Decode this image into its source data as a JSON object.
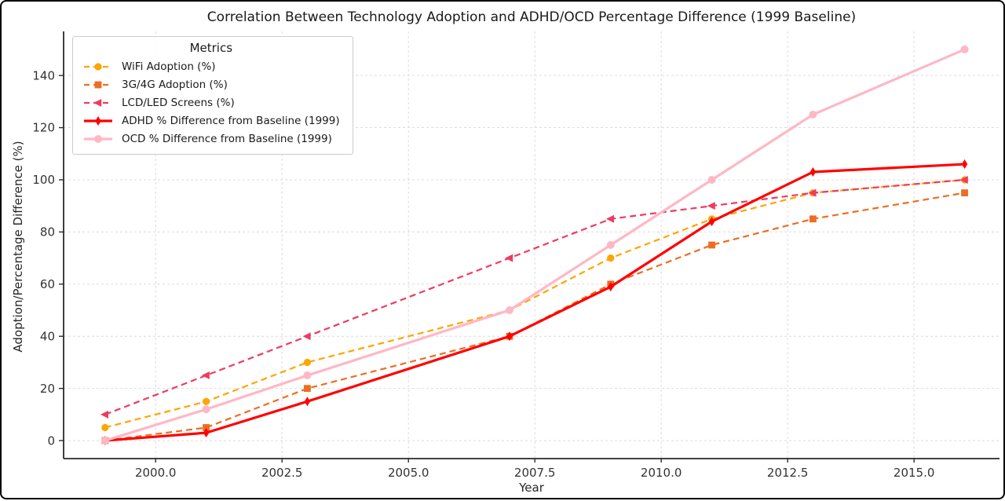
{
  "chart_data": {
    "type": "line",
    "title": "Correlation Between Technology Adoption and ADHD/OCD Percentage Difference (1999 Baseline)",
    "xlabel": "Year",
    "ylabel": "Adoption/Percentage Difference (%)",
    "legend_title": "Metrics",
    "legend_position": "upper-left",
    "grid": true,
    "x": [
      1999,
      2001,
      2003,
      2007,
      2009,
      2011,
      2013,
      2016
    ],
    "series": [
      {
        "name": "WiFi Adoption (%)",
        "values": [
          5,
          15,
          30,
          50,
          70,
          85,
          95,
          100
        ],
        "color": "#FFA500",
        "line_style": "dashed",
        "marker": "circle"
      },
      {
        "name": "3G/4G Adoption (%)",
        "values": [
          0,
          5,
          20,
          40,
          60,
          75,
          85,
          95
        ],
        "color": "#ED6D23",
        "line_style": "dashed",
        "marker": "square"
      },
      {
        "name": "LCD/LED Screens (%)",
        "values": [
          10,
          25,
          40,
          70,
          85,
          90,
          95,
          100
        ],
        "color": "#EE3B60",
        "line_style": "dashed",
        "marker": "triangle-left"
      },
      {
        "name": "ADHD % Difference from Baseline (1999)",
        "values": [
          0,
          3,
          15,
          40,
          59,
          84,
          103,
          106
        ],
        "color": "#FF0000",
        "line_style": "solid",
        "marker": "diamond-thin"
      },
      {
        "name": "OCD % Difference from Baseline (1999)",
        "values": [
          0,
          12,
          25,
          50,
          75,
          100,
          125,
          150
        ],
        "color": "#FFB7C5",
        "line_style": "solid",
        "marker": "circle"
      }
    ],
    "x_ticks": [
      2000.0,
      2002.5,
      2005.0,
      2007.5,
      2010.0,
      2012.5,
      2015.0
    ],
    "x_tick_labels": [
      "2000.0",
      "2002.5",
      "2005.0",
      "2007.5",
      "2010.0",
      "2012.5",
      "2015.0"
    ],
    "y_ticks": [
      0,
      20,
      40,
      60,
      80,
      100,
      120,
      140
    ],
    "y_tick_labels": [
      "0",
      "20",
      "40",
      "60",
      "80",
      "100",
      "120",
      "140"
    ],
    "xlim": [
      1998.18,
      2016.69
    ],
    "ylim": [
      -6.9,
      156.9
    ],
    "colors": {
      "grid": "#DCDCDC",
      "spine": "#2A2A2A",
      "tick_label": "#333333",
      "legend_border": "#CCCCCC"
    }
  }
}
